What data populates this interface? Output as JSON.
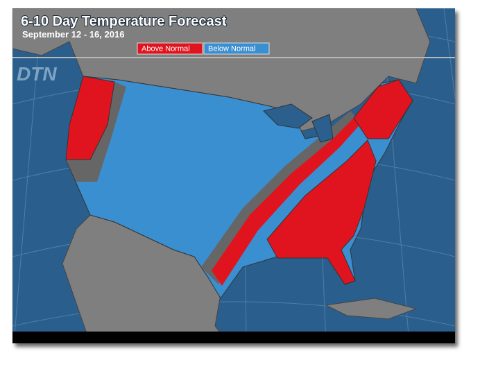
{
  "header": {
    "title": "6-10 Day Temperature Forecast",
    "subtitle": "September 12 - 16, 2016"
  },
  "legend": {
    "items": [
      {
        "label": "Above Normal",
        "color": "#e0141e"
      },
      {
        "label": "Below Normal",
        "color": "#3a8fd0"
      }
    ]
  },
  "logo": "DTN"
}
